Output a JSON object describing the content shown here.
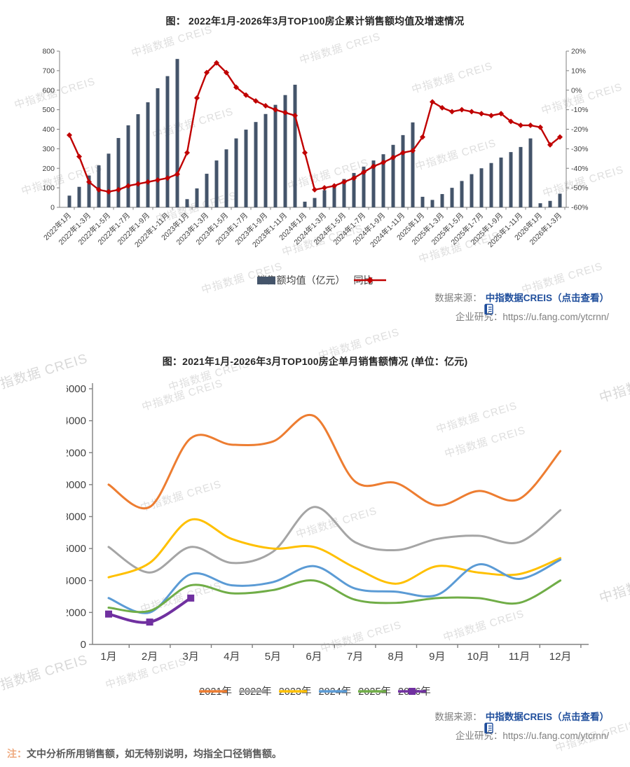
{
  "page": {
    "watermark_text": "中指数据 CREIS",
    "note_prefix": "注：",
    "note_text": "文中分析所用销售额，如无特别说明，均指全口径销售额。"
  },
  "source": {
    "label": "数据来源：",
    "link_text": "中指数据CREIS（点击查看）",
    "research_label": "企业研究：",
    "research_url": "https://u.fang.com/ytcrnn/",
    "link_color": "#1F4E9C"
  },
  "chart_data": [
    {
      "type": "bar",
      "subtype": "combo-bar-line-dual-axis",
      "title": "图： 2022年1月-2026年3月TOP100房企累计销售额均值及增速情况",
      "categories": [
        "2022年1月",
        "2022年1-2月",
        "2022年1-3月",
        "2022年1-4月",
        "2022年1-5月",
        "2022年1-6月",
        "2022年1-7月",
        "2022年1-8月",
        "2022年1-9月",
        "2022年1-10月",
        "2022年1-11月",
        "2022年1-12月",
        "2023年1月",
        "2023年1-2月",
        "2023年1-3月",
        "2023年1-4月",
        "2023年1-5月",
        "2023年1-6月",
        "2023年1-7月",
        "2023年1-8月",
        "2023年1-9月",
        "2023年1-10月",
        "2023年1-11月",
        "2023年1-12月",
        "2024年1月",
        "2024年1-2月",
        "2024年1-3月",
        "2024年1-4月",
        "2024年1-5月",
        "2024年1-6月",
        "2024年1-7月",
        "2024年1-8月",
        "2024年1-9月",
        "2024年1-10月",
        "2024年1-11月",
        "2024年1-12月",
        "2025年1月",
        "2025年1-2月",
        "2025年1-3月",
        "2025年1-4月",
        "2025年1-5月",
        "2025年1-6月",
        "2025年1-7月",
        "2025年1-8月",
        "2025年1-9月",
        "2025年1-10月",
        "2025年1-11月",
        "2025年1-12月",
        "2026年1月",
        "2026年1-2月",
        "2026年1-3月"
      ],
      "label_every": 2,
      "series": [
        {
          "name": "销售额均值（亿元）",
          "type": "bar",
          "axis": "left",
          "color": "#44546A",
          "values": [
            60,
            105,
            163,
            215,
            275,
            355,
            420,
            477,
            538,
            610,
            672,
            760,
            42,
            97,
            172,
            240,
            297,
            353,
            398,
            437,
            478,
            525,
            575,
            628,
            29,
            48,
            88,
            115,
            145,
            176,
            208,
            240,
            272,
            320,
            370,
            435,
            54,
            38,
            68,
            100,
            135,
            170,
            200,
            227,
            255,
            283,
            309,
            353,
            21,
            33,
            70
          ]
        },
        {
          "name": "同比",
          "type": "line",
          "axis": "right",
          "color": "#C00000",
          "marker": "diamond",
          "values": [
            -23,
            -34,
            -47,
            -51,
            -52,
            -51,
            -49,
            -48,
            -47,
            -46,
            -45,
            -43,
            -32,
            -4,
            9,
            14,
            9,
            1.5,
            -2.5,
            -5.5,
            -8,
            -10,
            -11.5,
            -13,
            -32,
            -51,
            -50,
            -49,
            -47,
            -45,
            -42,
            -39,
            -37,
            -34.5,
            -32,
            -31,
            -24,
            -6,
            -9,
            -11,
            -10,
            -11,
            -12,
            -13,
            -12,
            -16,
            -18,
            -18,
            -19,
            -28,
            -24
          ]
        }
      ],
      "left_axis": {
        "min": 0,
        "max": 800,
        "step": 100
      },
      "right_axis": {
        "min": -60,
        "max": 20,
        "step": 10,
        "unit": "%"
      },
      "grid": false,
      "legend_position": "bottom"
    },
    {
      "type": "line",
      "title": "图：2021年1月-2026年3月TOP100房企单月销售额情况 (单位：亿元)",
      "x": [
        "1月",
        "2月",
        "3月",
        "4月",
        "5月",
        "6月",
        "7月",
        "8月",
        "9月",
        "10月",
        "11月",
        "12月"
      ],
      "y_axis": {
        "min": 0,
        "max": 16000,
        "step": 2000
      },
      "grid": false,
      "legend_position": "bottom",
      "series": [
        {
          "name": "2021年",
          "color": "#ED7D31",
          "smooth": true,
          "values": [
            10000,
            8600,
            12900,
            12500,
            12700,
            14300,
            10200,
            10100,
            8700,
            9600,
            9100,
            12100
          ]
        },
        {
          "name": "2022年",
          "color": "#A5A5A5",
          "smooth": true,
          "values": [
            6100,
            4500,
            6100,
            5100,
            5800,
            8600,
            6400,
            5900,
            6600,
            6800,
            6400,
            8400
          ]
        },
        {
          "name": "2023年",
          "color": "#FFC000",
          "smooth": true,
          "values": [
            4200,
            5100,
            7800,
            6600,
            6000,
            6100,
            4800,
            3800,
            4900,
            4500,
            4400,
            5400
          ]
        },
        {
          "name": "2024年",
          "color": "#5B9BD5",
          "smooth": true,
          "values": [
            2900,
            2000,
            4400,
            3700,
            3900,
            4900,
            3500,
            3300,
            3100,
            5000,
            4100,
            5300
          ]
        },
        {
          "name": "2025年",
          "color": "#70AD47",
          "smooth": true,
          "values": [
            2300,
            2100,
            3700,
            3200,
            3400,
            4000,
            2800,
            2600,
            2900,
            2900,
            2600,
            4000
          ]
        },
        {
          "name": "2026年",
          "color": "#7030A0",
          "smooth": true,
          "marker": "square",
          "values": [
            1900,
            1400,
            2900
          ]
        }
      ]
    }
  ]
}
